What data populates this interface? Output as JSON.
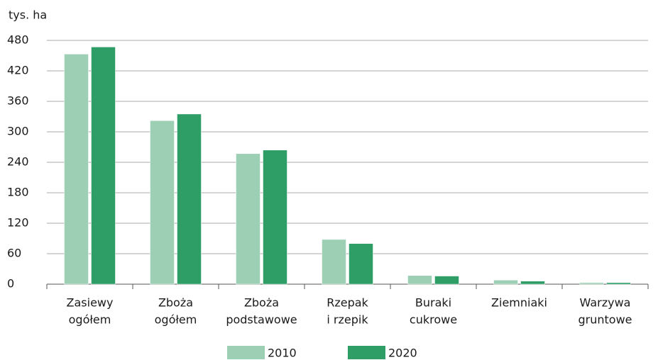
{
  "chart_data": {
    "type": "bar",
    "y_label": "tys. ha",
    "categories": [
      [
        "Zasiewy",
        "ogółem"
      ],
      [
        "Zboża",
        "ogółem"
      ],
      [
        "Zboża",
        "podstawowe"
      ],
      [
        "Rzepak",
        "i rzepik"
      ],
      [
        "Buraki",
        "cukrowe"
      ],
      [
        "Ziemniaki"
      ],
      [
        "Warzywa",
        "gruntowe"
      ]
    ],
    "series": [
      {
        "name": "2010",
        "color": "#9dcfb4",
        "values": [
          453,
          322,
          257,
          88,
          17,
          8,
          3
        ]
      },
      {
        "name": "2020",
        "color": "#2e9e66",
        "values": [
          467,
          335,
          264,
          80,
          16,
          6,
          3
        ]
      }
    ],
    "ylim": [
      0,
      480
    ],
    "yticks": [
      0,
      60,
      120,
      180,
      240,
      300,
      360,
      420,
      480
    ],
    "grid": true,
    "legend": "bottom"
  }
}
